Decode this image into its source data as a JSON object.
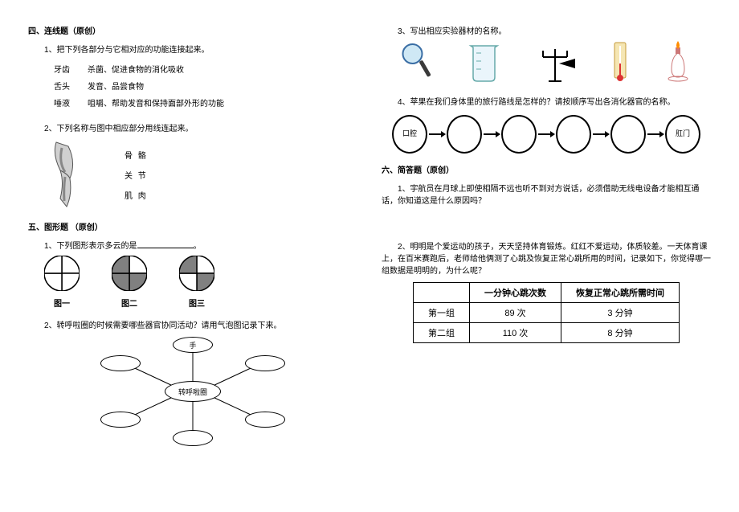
{
  "left": {
    "sec4_title": "四、连线题（原创）",
    "q1_text": "1、把下列各部分与它相对应的功能连接起来。",
    "match_rows": [
      {
        "l": "牙齿",
        "r": "杀菌、促进食物的消化吸收"
      },
      {
        "l": "舌头",
        "r": "发音、品尝食物"
      },
      {
        "l": "唾液",
        "r": "咀嚼、帮助发音和保持面部外形的功能"
      }
    ],
    "q2_text": "2、下列名称与图中相应部分用线连起来。",
    "arm_labels": [
      "骨  骼",
      "关  节",
      "肌  肉"
    ],
    "sec5_title": "五、图形题 （原创）",
    "q5_1": "1、下列图形表示多云的是",
    "pies": [
      {
        "label": "图一",
        "fills": [
          0,
          0,
          0,
          0
        ]
      },
      {
        "label": "图二",
        "fills": [
          0,
          1,
          1,
          1
        ]
      },
      {
        "label": "图三",
        "fills": [
          0,
          1,
          0,
          1
        ]
      }
    ],
    "q5_2": "2、转呼啦圈的时候需要哪些器官协同活动？请用气泡图记录下来。",
    "bubble_center": "转呼啦圈",
    "bubble_top": "手"
  },
  "right": {
    "q3_text": "3、写出相应实验器材的名称。",
    "q4_text": "4、苹果在我们身体里的旅行路线是怎样的？请按顺序写出各消化器官的名称。",
    "flow_start": "口腔",
    "flow_end": "肛门",
    "sec6_title": "六、简答题（原创）",
    "q6_1": "1、宇航员在月球上即使相隔不远也听不到对方说话，必须借助无线电设备才能相互通话，你知道这是什么原因吗？",
    "q6_2": "2、明明是个爱运动的孩子，天天坚持体育锻炼。红红不爱运动，体质较差。一天体育课上，在百米赛跑后，老师给他俩测了心跳及恢复正常心跳所用的时间，记录如下，你觉得哪一组数据是明明的，为什么呢？",
    "table": {
      "headers": [
        "",
        "一分钟心跳次数",
        "恢复正常心跳所需时间"
      ],
      "rows": [
        [
          "第一组",
          "89 次",
          "3 分钟"
        ],
        [
          "第二组",
          "110 次",
          "8 分钟"
        ]
      ]
    }
  },
  "style": {
    "pie_fill": "#808080",
    "pie_stroke": "#000000"
  }
}
